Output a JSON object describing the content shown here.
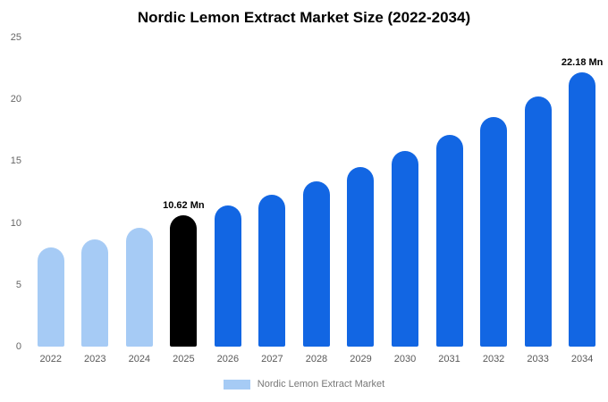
{
  "title": "Nordic Lemon Extract Market Size (2022-2034)",
  "legend": {
    "label": "Nordic Lemon Extract Market",
    "swatch_color": "#a6cbf5"
  },
  "colors": {
    "light_blue": "#a6cbf5",
    "highlight_black": "#000000",
    "blue": "#1266e3",
    "axis_text": "#666666"
  },
  "chart_data": {
    "type": "bar",
    "title": "Nordic Lemon Extract Market Size (2022-2034)",
    "xlabel": "",
    "ylabel": "",
    "categories": [
      "2022",
      "2023",
      "2024",
      "2025",
      "2026",
      "2027",
      "2028",
      "2029",
      "2030",
      "2031",
      "2032",
      "2033",
      "2034"
    ],
    "values": [
      8.0,
      8.7,
      9.6,
      10.62,
      11.4,
      12.3,
      13.4,
      14.5,
      15.8,
      17.1,
      18.6,
      20.2,
      22.18
    ],
    "bar_colors": [
      "#a6cbf5",
      "#a6cbf5",
      "#a6cbf5",
      "#000000",
      "#1266e3",
      "#1266e3",
      "#1266e3",
      "#1266e3",
      "#1266e3",
      "#1266e3",
      "#1266e3",
      "#1266e3",
      "#1266e3"
    ],
    "annotations": [
      {
        "index": 3,
        "text": "10.62 Mn"
      },
      {
        "index": 12,
        "text": "22.18 Mn"
      }
    ],
    "ylim": [
      0,
      25
    ],
    "yticks": [
      0,
      5,
      10,
      15,
      20,
      25
    ],
    "grid": false,
    "legend_position": "bottom",
    "legend_entries": [
      "Nordic Lemon Extract Market"
    ]
  }
}
